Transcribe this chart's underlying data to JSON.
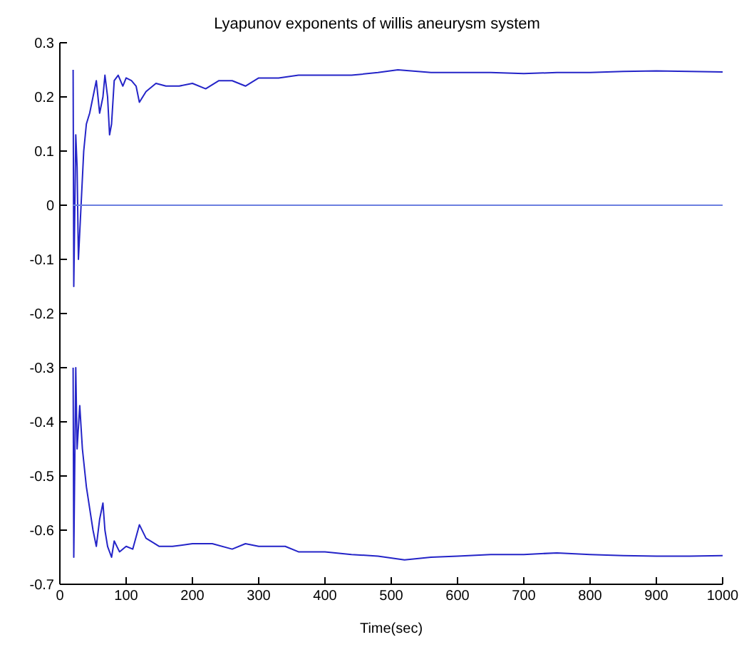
{
  "chart_data": {
    "type": "line",
    "title": "Lyapunov exponents of willis aneurysm system",
    "xlabel": "Time(sec)",
    "xlim": [
      0,
      1000
    ],
    "xticks": [
      0,
      100,
      200,
      300,
      400,
      500,
      600,
      700,
      800,
      900,
      1000
    ],
    "ylim": [
      -0.7,
      0.3
    ],
    "yticks": [
      -0.7,
      -0.6,
      -0.5,
      -0.4,
      -0.3,
      -0.2,
      -0.1,
      0,
      0.1,
      0.2,
      0.3
    ],
    "grid": false,
    "legend": false,
    "marker": "none",
    "line_style": "solid",
    "series": [
      {
        "color": "#2424c8",
        "x": [
          20,
          21,
          24,
          26,
          28,
          32,
          36,
          40,
          45,
          50,
          55,
          60,
          65,
          68,
          72,
          75,
          78,
          82,
          88,
          95,
          100,
          108,
          115,
          120,
          130,
          145,
          160,
          180,
          200,
          220,
          240,
          260,
          280,
          300,
          330,
          360,
          400,
          440,
          480,
          510,
          530,
          560,
          600,
          650,
          700,
          750,
          800,
          850,
          900,
          950,
          1000
        ],
        "values": [
          0.25,
          -0.15,
          0.13,
          0.07,
          -0.1,
          0.0,
          0.1,
          0.15,
          0.17,
          0.2,
          0.23,
          0.17,
          0.2,
          0.24,
          0.2,
          0.13,
          0.15,
          0.23,
          0.24,
          0.22,
          0.235,
          0.23,
          0.22,
          0.19,
          0.21,
          0.225,
          0.22,
          0.22,
          0.225,
          0.215,
          0.23,
          0.23,
          0.22,
          0.235,
          0.235,
          0.24,
          0.24,
          0.24,
          0.245,
          0.25,
          0.248,
          0.245,
          0.245,
          0.245,
          0.243,
          0.245,
          0.245,
          0.247,
          0.248,
          0.247,
          0.246
        ]
      },
      {
        "color": "#6b7fe0",
        "x": [
          20,
          1000
        ],
        "values": [
          0,
          0
        ]
      },
      {
        "color": "#2424c8",
        "x": [
          20,
          21,
          24,
          26,
          30,
          34,
          40,
          45,
          50,
          55,
          60,
          65,
          68,
          72,
          78,
          82,
          90,
          100,
          110,
          120,
          130,
          150,
          170,
          200,
          230,
          260,
          280,
          300,
          340,
          360,
          400,
          440,
          480,
          520,
          560,
          600,
          650,
          700,
          750,
          800,
          850,
          900,
          950,
          1000
        ],
        "values": [
          -0.3,
          -0.65,
          -0.3,
          -0.45,
          -0.37,
          -0.45,
          -0.52,
          -0.56,
          -0.6,
          -0.63,
          -0.58,
          -0.55,
          -0.6,
          -0.63,
          -0.65,
          -0.62,
          -0.64,
          -0.63,
          -0.635,
          -0.59,
          -0.615,
          -0.63,
          -0.63,
          -0.625,
          -0.625,
          -0.635,
          -0.625,
          -0.63,
          -0.63,
          -0.64,
          -0.64,
          -0.645,
          -0.648,
          -0.655,
          -0.65,
          -0.648,
          -0.645,
          -0.645,
          -0.642,
          -0.645,
          -0.647,
          -0.648,
          -0.648,
          -0.647
        ]
      }
    ]
  }
}
